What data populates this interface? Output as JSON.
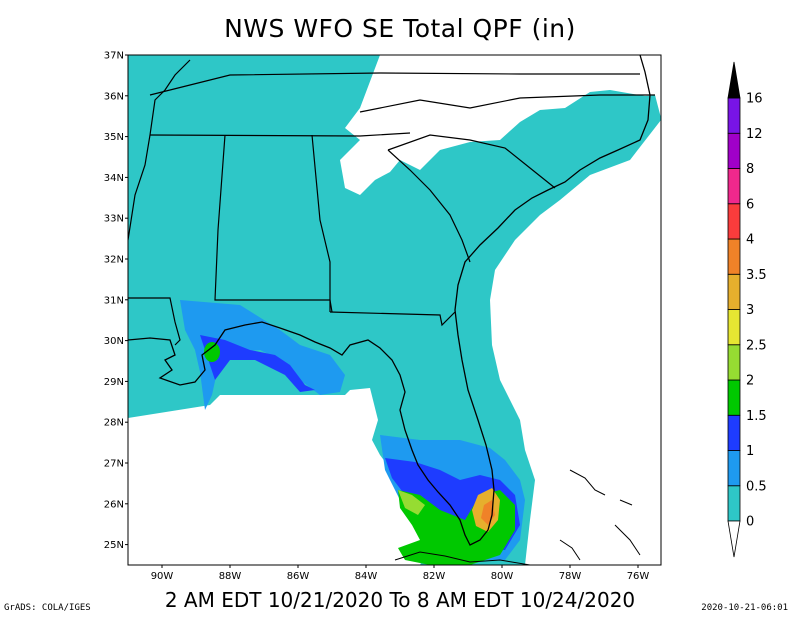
{
  "title": "NWS WFO SE Total QPF (in)",
  "subtitle": "2 AM EDT 10/21/2020 To 8 AM EDT 10/24/2020",
  "credit_left": "GrADS: COLA/IGES",
  "credit_right": "2020-10-21-06:01",
  "lat_labels": [
    "37N",
    "36N",
    "35N",
    "34N",
    "33N",
    "32N",
    "31N",
    "30N",
    "29N",
    "28N",
    "27N",
    "26N",
    "25N"
  ],
  "lon_labels": [
    "90W",
    "88W",
    "86W",
    "84W",
    "82W",
    "80W",
    "78W",
    "76W"
  ],
  "colorbar": {
    "labels": [
      "0",
      "0.5",
      "1",
      "1.5",
      "2",
      "2.5",
      "3",
      "3.5",
      "4",
      "6",
      "8",
      "12",
      "16"
    ],
    "colors": [
      "#2ec7c7",
      "#1e9af0",
      "#1e3cff",
      "#00c800",
      "#96dc32",
      "#e6e632",
      "#e6af2d",
      "#f08228",
      "#fa3c3c",
      "#f0288c",
      "#a000c8",
      "#7814e6",
      "#000000"
    ]
  }
}
